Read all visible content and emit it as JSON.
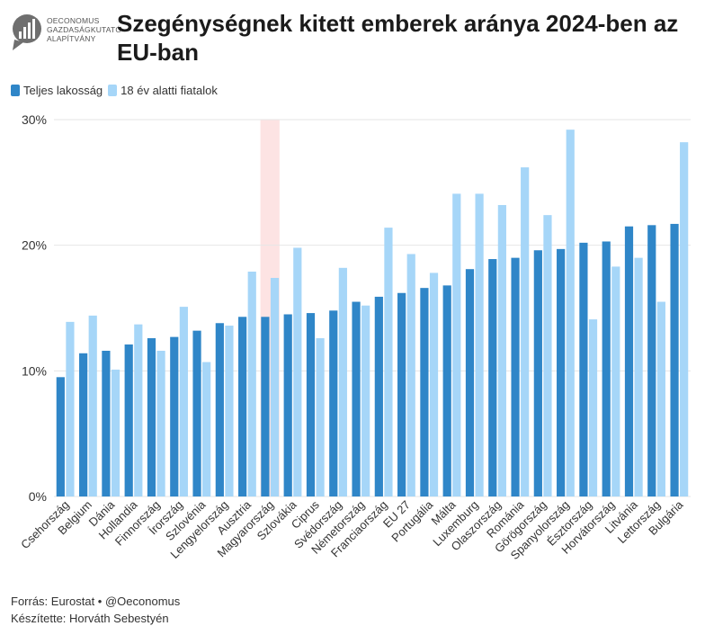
{
  "logo": {
    "lines": [
      "OECONOMUS",
      "GAZDASÁGKUTATÓ",
      "ALAPÍTVÁNY"
    ]
  },
  "title": "Szegénységnek kitett emberek aránya 2024-ben az EU-ban",
  "colors": {
    "series1": "#2f86c8",
    "series2": "#a6d6f8",
    "highlight": "#fde3e3",
    "grid": "#e6e6e6"
  },
  "footer": {
    "source": "Forrás: Eurostat • @Oeconomus",
    "author": "Készítette: Horváth Sebestyén"
  },
  "chart_data": {
    "type": "bar",
    "ylim": [
      0,
      30
    ],
    "yticks": [
      "0%",
      "10%",
      "20%",
      "30%"
    ],
    "grid": true,
    "legend_position": "top-left",
    "highlight_category": "Magyarország",
    "categories": [
      "Csehország",
      "Belgium",
      "Dánia",
      "Hollandia",
      "Finnország",
      "Írország",
      "Szlovénia",
      "Lengyelország",
      "Ausztria",
      "Magyarország",
      "Szlovákia",
      "Ciprus",
      "Svédország",
      "Németország",
      "Franciaország",
      "EU 27",
      "Portugália",
      "Málta",
      "Luxemburg",
      "Olaszország",
      "Románia",
      "Görögország",
      "Spanyolország",
      "Észtország",
      "Horvátország",
      "Litvánia",
      "Lettország",
      "Bulgária"
    ],
    "series": [
      {
        "name": "Teljes lakosság",
        "values": [
          9.5,
          11.4,
          11.6,
          12.1,
          12.6,
          12.7,
          13.2,
          13.8,
          14.3,
          14.3,
          14.5,
          14.6,
          14.8,
          15.5,
          15.9,
          16.2,
          16.6,
          16.8,
          18.1,
          18.9,
          19.0,
          19.6,
          19.7,
          20.2,
          20.3,
          21.5,
          21.6,
          21.7
        ]
      },
      {
        "name": "18 év alatti fiatalok",
        "values": [
          13.9,
          14.4,
          10.1,
          13.7,
          11.6,
          15.1,
          10.7,
          13.6,
          17.9,
          17.4,
          19.8,
          12.6,
          18.2,
          15.2,
          21.4,
          19.3,
          17.8,
          24.1,
          24.1,
          23.2,
          26.2,
          22.4,
          29.2,
          14.1,
          18.3,
          19.0,
          15.5,
          28.2
        ]
      }
    ]
  }
}
